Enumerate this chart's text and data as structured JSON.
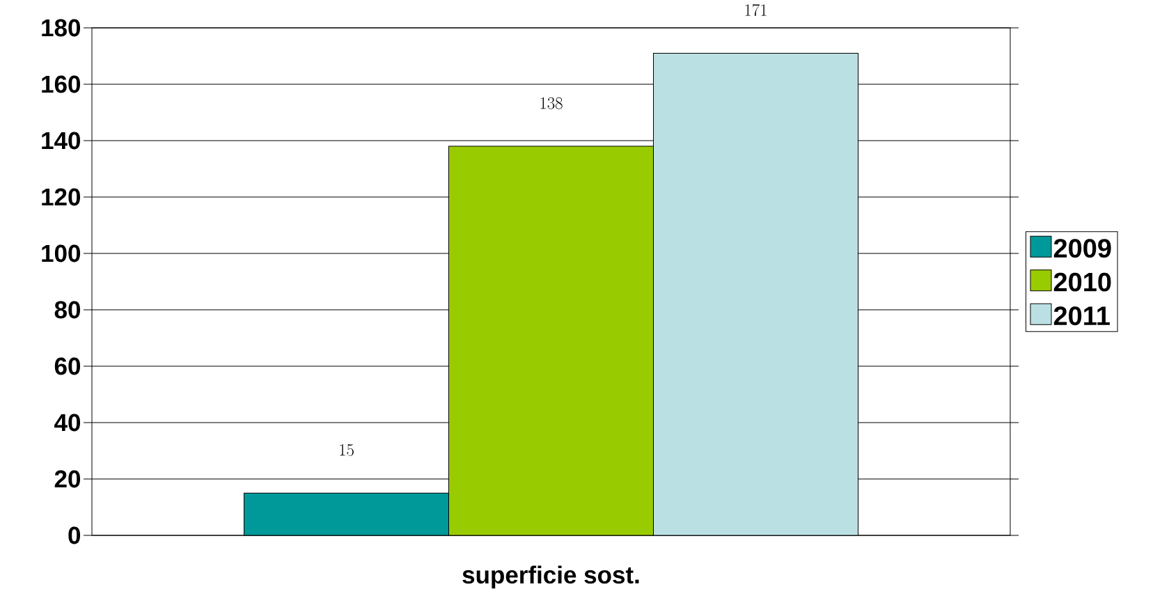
{
  "chart_data": {
    "type": "bar",
    "categories": [
      "superficie sost."
    ],
    "series": [
      {
        "name": "2009",
        "color": "#009999",
        "values": [
          15
        ]
      },
      {
        "name": "2010",
        "color": "#99cc00",
        "values": [
          138
        ]
      },
      {
        "name": "2011",
        "color": "#bbe0e3",
        "values": [
          171
        ]
      }
    ],
    "ylim": [
      0,
      180
    ],
    "yticks": [
      0,
      20,
      40,
      60,
      80,
      100,
      120,
      140,
      160,
      180
    ],
    "grid": "y",
    "legend": "right",
    "data_labels": true
  }
}
